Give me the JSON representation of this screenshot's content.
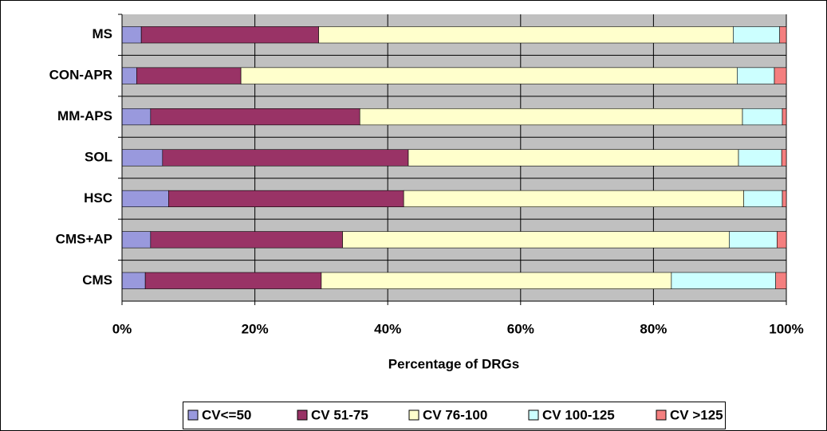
{
  "chart_data": {
    "type": "bar",
    "orientation": "horizontal",
    "stacked": true,
    "x_label": "Percentage of DRGs",
    "categories": [
      "MS",
      "CON-APR",
      "MM-APS",
      "SOL",
      "HSC",
      "CMS+AP",
      "CMS"
    ],
    "series": [
      {
        "name": "CV<=50",
        "color": "#9999dd",
        "values": [
          2.9,
          2.2,
          4.3,
          6.1,
          7.0,
          4.3,
          3.5
        ]
      },
      {
        "name": "CV 51-75",
        "color": "#993366",
        "values": [
          26.7,
          15.7,
          31.5,
          37.0,
          35.4,
          28.9,
          26.5
        ]
      },
      {
        "name": "CV 76-100",
        "color": "#ffffcc",
        "values": [
          62.4,
          74.7,
          57.6,
          49.7,
          51.2,
          58.2,
          52.7
        ]
      },
      {
        "name": "CV 100-125",
        "color": "#ccffff",
        "values": [
          7.0,
          5.6,
          6.0,
          6.5,
          5.8,
          7.2,
          15.7
        ]
      },
      {
        "name": "CV >125",
        "color": "#f47f7f",
        "values": [
          1.0,
          1.8,
          0.6,
          0.7,
          0.6,
          1.4,
          1.6
        ]
      }
    ],
    "xlim": [
      0,
      100
    ],
    "xticks": [
      {
        "value": 0,
        "label": "0%"
      },
      {
        "value": 20,
        "label": "20%"
      },
      {
        "value": 40,
        "label": "40%"
      },
      {
        "value": 60,
        "label": "60%"
      },
      {
        "value": 80,
        "label": "80%"
      },
      {
        "value": 100,
        "label": "100%"
      }
    ],
    "grid": true,
    "legend": "bottom"
  }
}
